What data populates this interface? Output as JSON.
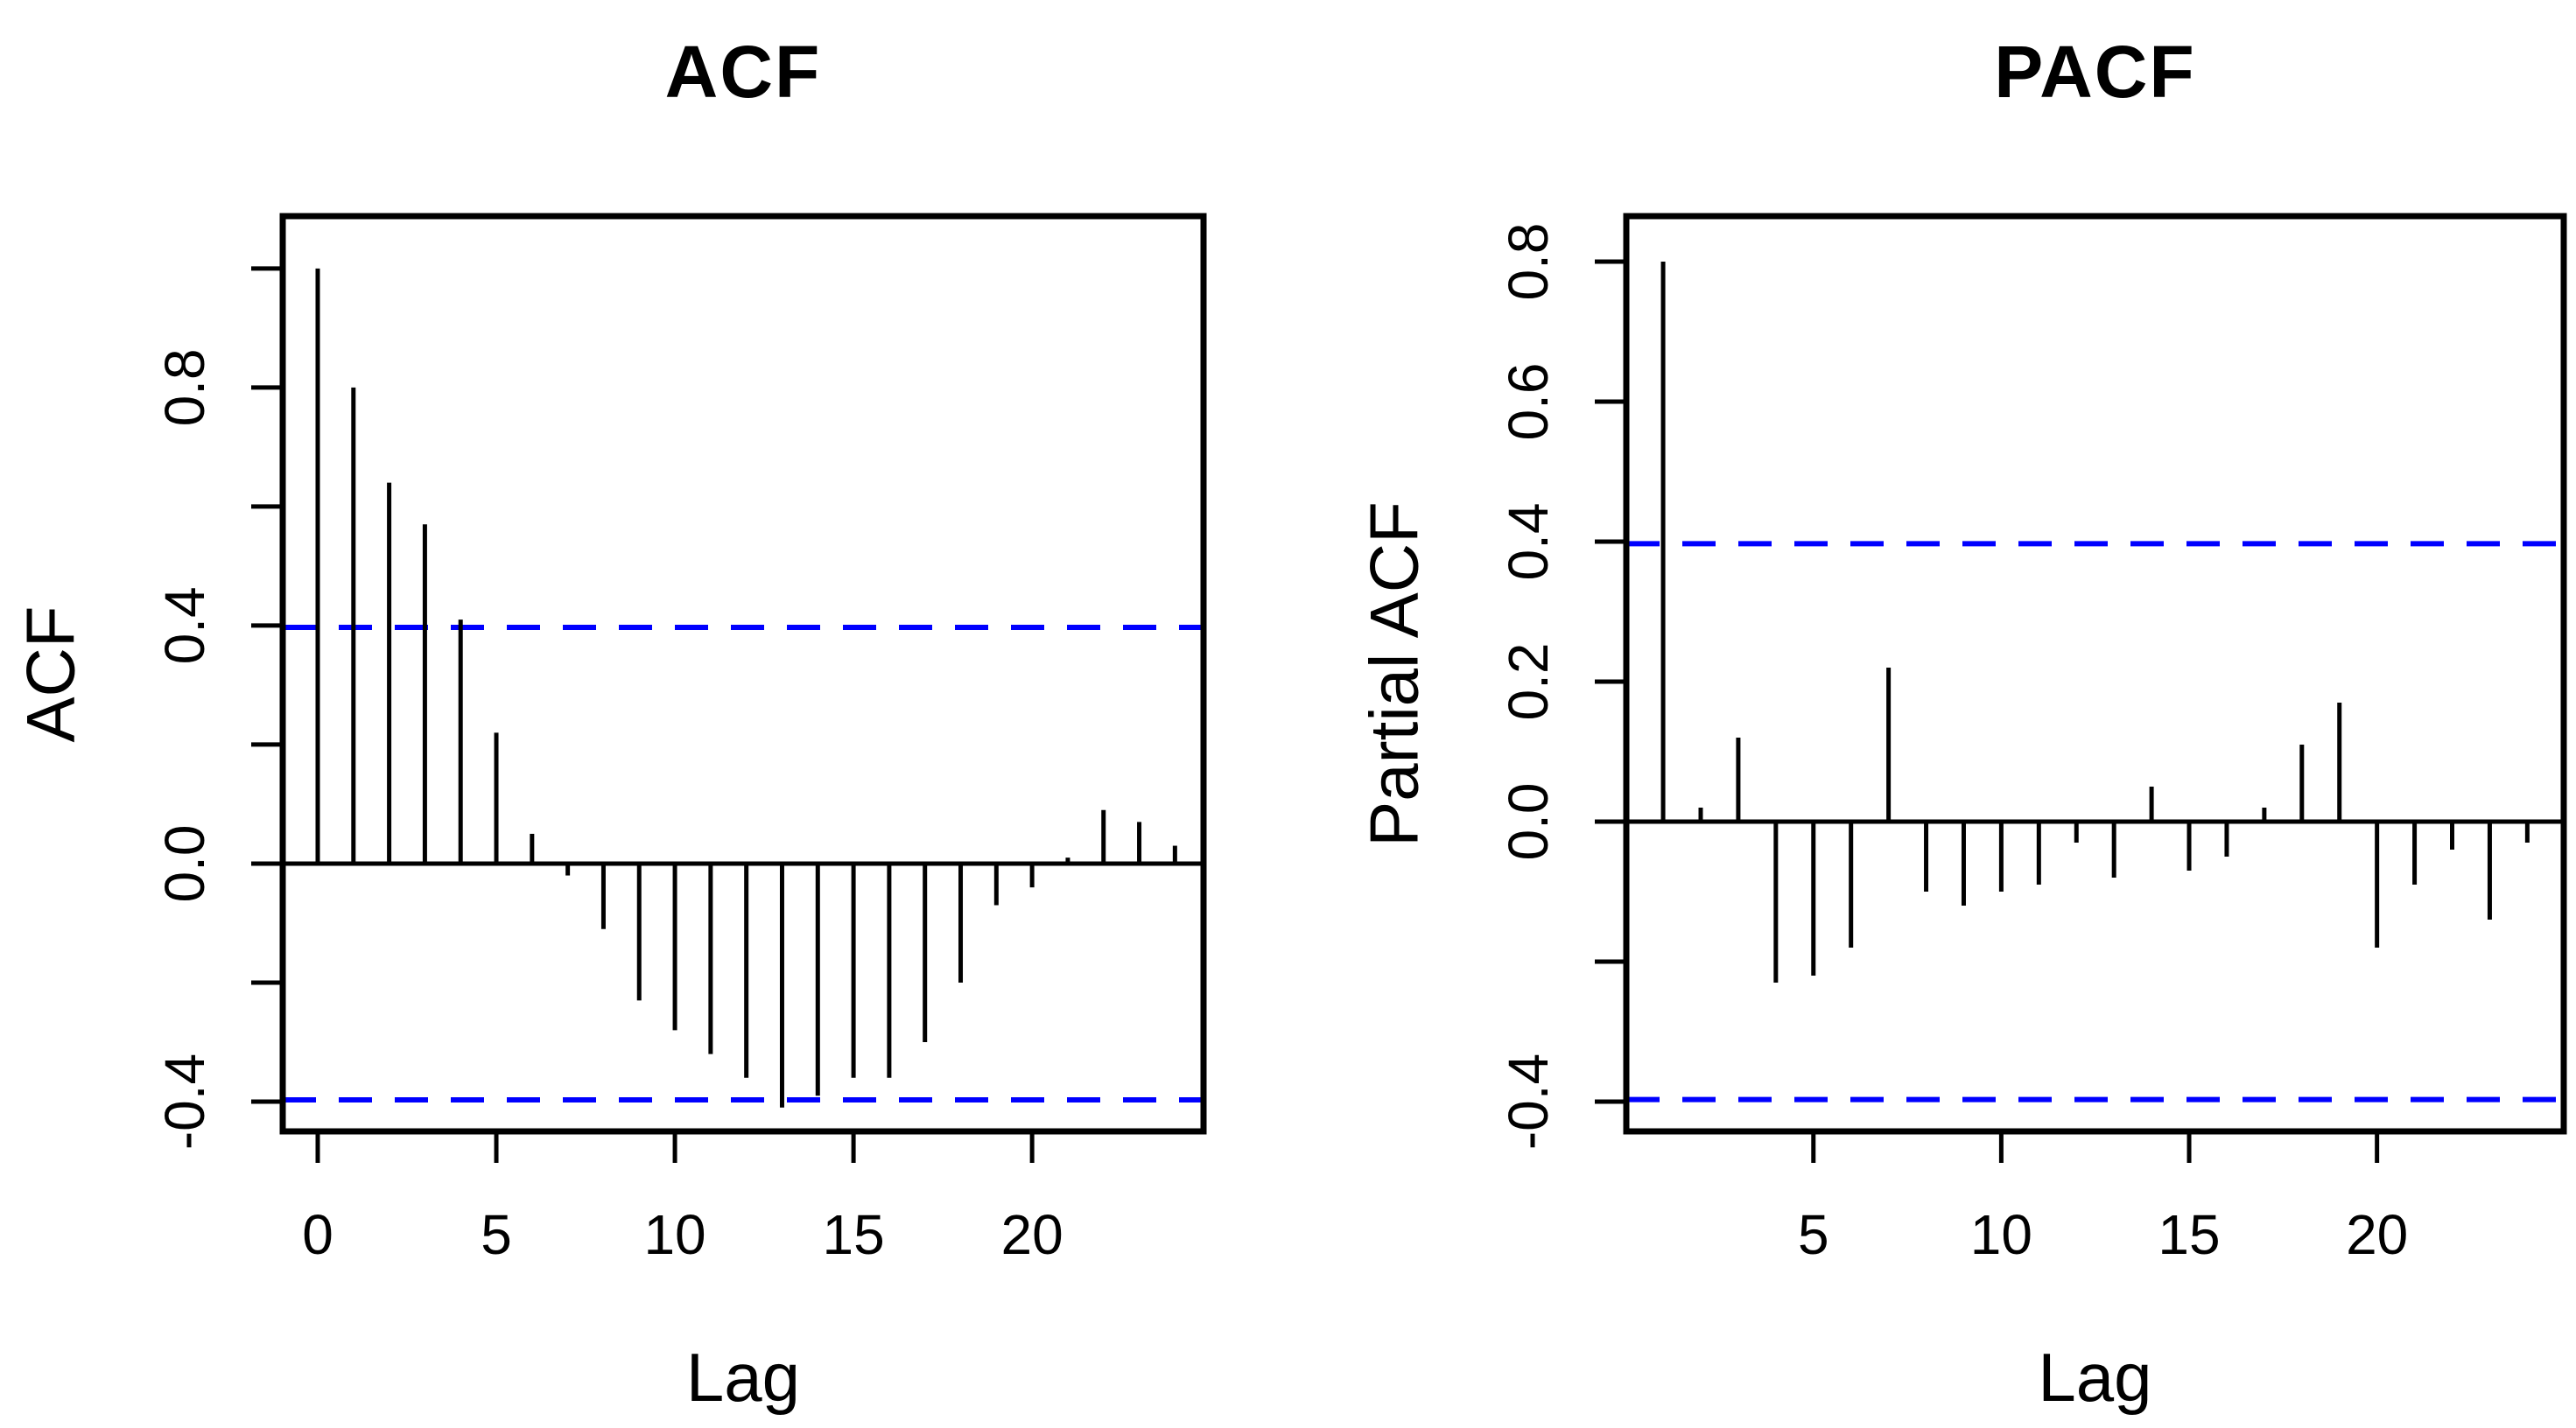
{
  "figure": {
    "background": "#ffffff",
    "foreground": "#000000",
    "confidence_line_color": "#0000ff"
  },
  "chart_data": [
    {
      "type": "bar",
      "subtype": "stem-correlogram",
      "title": "ACF",
      "xlabel": "Lag",
      "ylabel": "ACF",
      "x": [
        0,
        1,
        2,
        3,
        4,
        5,
        6,
        7,
        8,
        9,
        10,
        11,
        12,
        13,
        14,
        15,
        16,
        17,
        18,
        19,
        20,
        21,
        22,
        23,
        24
      ],
      "values": [
        1.0,
        0.8,
        0.64,
        0.57,
        0.41,
        0.22,
        0.05,
        -0.02,
        -0.11,
        -0.23,
        -0.28,
        -0.32,
        -0.36,
        -0.41,
        -0.39,
        -0.36,
        -0.36,
        -0.3,
        -0.2,
        -0.07,
        -0.04,
        0.01,
        0.09,
        0.07,
        0.03
      ],
      "confidence_bounds": [
        0.397,
        -0.397
      ],
      "xlim": [
        -0.98,
        24.8
      ],
      "ylim": [
        -0.45,
        1.088
      ],
      "grid": false,
      "legend": null,
      "x_ticks": [
        {
          "v": 0,
          "label": "0"
        },
        {
          "v": 5,
          "label": "5"
        },
        {
          "v": 10,
          "label": "10"
        },
        {
          "v": 15,
          "label": "15"
        },
        {
          "v": 20,
          "label": "20"
        }
      ],
      "y_ticks": [
        {
          "v": 1.0,
          "label": ""
        },
        {
          "v": 0.8,
          "label": "0.8"
        },
        {
          "v": 0.6,
          "label": ""
        },
        {
          "v": 0.4,
          "label": "0.4"
        },
        {
          "v": 0.2,
          "label": ""
        },
        {
          "v": 0.0,
          "label": "0.0"
        },
        {
          "v": -0.2,
          "label": ""
        },
        {
          "v": -0.4,
          "label": "-0.4"
        }
      ],
      "colors": {
        "bar": "#000000",
        "axis": "#000000",
        "confidence": "#0000ff"
      }
    },
    {
      "type": "bar",
      "subtype": "stem-correlogram",
      "title": "PACF",
      "xlabel": "Lag",
      "ylabel": "Partial ACF",
      "x": [
        1,
        2,
        3,
        4,
        5,
        6,
        7,
        8,
        9,
        10,
        11,
        12,
        13,
        14,
        15,
        16,
        17,
        18,
        19,
        20,
        21,
        22,
        23,
        24
      ],
      "values": [
        0.8,
        0.02,
        0.12,
        -0.23,
        -0.22,
        -0.18,
        0.22,
        -0.1,
        -0.12,
        -0.1,
        -0.09,
        -0.03,
        -0.08,
        0.05,
        -0.07,
        -0.05,
        0.02,
        0.11,
        0.17,
        -0.18,
        -0.09,
        -0.04,
        -0.14,
        -0.03
      ],
      "confidence_bounds": [
        0.397,
        -0.397
      ],
      "xlim": [
        0.02,
        24.97
      ],
      "ylim": [
        -0.4425,
        0.865
      ],
      "grid": false,
      "legend": null,
      "x_ticks": [
        {
          "v": 5,
          "label": "5"
        },
        {
          "v": 10,
          "label": "10"
        },
        {
          "v": 15,
          "label": "15"
        },
        {
          "v": 20,
          "label": "20"
        }
      ],
      "y_ticks": [
        {
          "v": 0.8,
          "label": "0.8"
        },
        {
          "v": 0.6,
          "label": "0.6"
        },
        {
          "v": 0.4,
          "label": "0.4"
        },
        {
          "v": 0.2,
          "label": "0.2"
        },
        {
          "v": 0.0,
          "label": "0.0"
        },
        {
          "v": -0.2,
          "label": ""
        },
        {
          "v": -0.4,
          "label": "-0.4"
        }
      ],
      "colors": {
        "bar": "#000000",
        "axis": "#000000",
        "confidence": "#0000ff"
      }
    }
  ]
}
